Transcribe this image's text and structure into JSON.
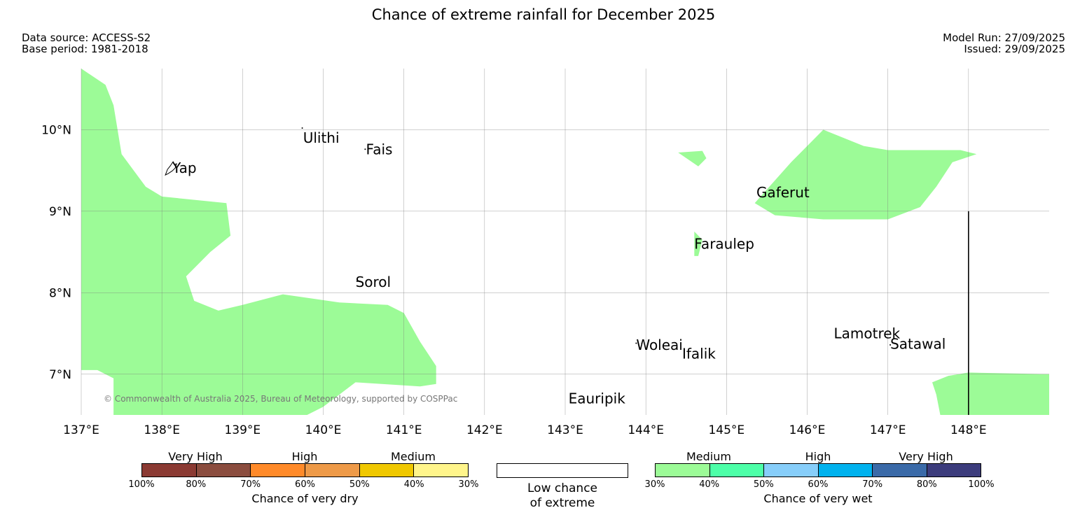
{
  "title": "Chance of extreme rainfall for December 2025",
  "meta": {
    "data_source": "Data source: ACCESS-S2",
    "base_period": "Base period: 1981-2018",
    "model_run": "Model Run: 27/09/2025",
    "issued": "Issued: 29/09/2025"
  },
  "map": {
    "lon_range": [
      137,
      149
    ],
    "lat_range": [
      6.5,
      10.75
    ],
    "lon_ticks": [
      137,
      138,
      139,
      140,
      141,
      142,
      143,
      144,
      145,
      146,
      147,
      148
    ],
    "lon_labels": [
      "137°E",
      "138°E",
      "139°E",
      "140°E",
      "141°E",
      "142°E",
      "143°E",
      "144°E",
      "145°E",
      "146°E",
      "147°E",
      "148°E"
    ],
    "lat_ticks": [
      7,
      8,
      9,
      10
    ],
    "lat_labels": [
      "7°N",
      "8°N",
      "9°N",
      "10°N"
    ],
    "copyright": "© Commonwealth of Australia 2025, Bureau of Meteorology, supported by COSPPac",
    "fill_color": "#9cfb97",
    "places": [
      {
        "name": "Ulithi",
        "lon": 139.75,
        "lat": 9.9
      },
      {
        "name": "Fais",
        "lon": 140.53,
        "lat": 9.76
      },
      {
        "name": "Yap",
        "lon": 138.13,
        "lat": 9.53
      },
      {
        "name": "Gaferut",
        "lon": 145.37,
        "lat": 9.23
      },
      {
        "name": "Faraulep",
        "lon": 144.6,
        "lat": 8.6
      },
      {
        "name": "Sorol",
        "lon": 140.4,
        "lat": 8.13
      },
      {
        "name": "Woleai",
        "lon": 143.88,
        "lat": 7.36
      },
      {
        "name": "Ifalik",
        "lon": 144.45,
        "lat": 7.25
      },
      {
        "name": "Lamotrek",
        "lon": 146.33,
        "lat": 7.5
      },
      {
        "name": "Satawal",
        "lon": 147.03,
        "lat": 7.37
      },
      {
        "name": "Eauripik",
        "lon": 143.04,
        "lat": 6.7
      }
    ],
    "wet_regions": [
      {
        "name": "wet-region-west",
        "lonlat": [
          [
            137,
            10.75
          ],
          [
            137.3,
            10.55
          ],
          [
            137.4,
            10.3
          ],
          [
            137.5,
            9.7
          ],
          [
            137.8,
            9.3
          ],
          [
            138,
            9.18
          ],
          [
            138.8,
            9.1
          ],
          [
            138.85,
            8.7
          ],
          [
            138.6,
            8.5
          ],
          [
            138.3,
            8.2
          ],
          [
            138.4,
            7.9
          ],
          [
            138.7,
            7.78
          ],
          [
            139,
            7.85
          ],
          [
            139.5,
            7.98
          ],
          [
            140.2,
            7.88
          ],
          [
            140.8,
            7.85
          ],
          [
            141,
            7.75
          ],
          [
            141.2,
            7.4
          ],
          [
            141.4,
            7.1
          ],
          [
            141.4,
            6.88
          ],
          [
            141.2,
            6.85
          ],
          [
            140.4,
            6.9
          ],
          [
            140,
            6.6
          ],
          [
            139.8,
            6.5
          ],
          [
            137.4,
            6.5
          ],
          [
            137.4,
            6.95
          ],
          [
            137.2,
            7.05
          ],
          [
            137,
            7.05
          ]
        ]
      },
      {
        "name": "wet-region-small-1",
        "lonlat": [
          [
            144.4,
            9.72
          ],
          [
            144.7,
            9.74
          ],
          [
            144.75,
            9.65
          ],
          [
            144.65,
            9.55
          ]
        ]
      },
      {
        "name": "wet-region-small-2",
        "lonlat": [
          [
            144.6,
            8.75
          ],
          [
            144.7,
            8.65
          ],
          [
            144.65,
            8.45
          ],
          [
            144.6,
            8.45
          ]
        ]
      },
      {
        "name": "wet-region-northeast",
        "lonlat": [
          [
            145.35,
            9.1
          ],
          [
            145.8,
            9.6
          ],
          [
            146.2,
            10.0
          ],
          [
            146.7,
            9.8
          ],
          [
            147.0,
            9.75
          ],
          [
            147.9,
            9.75
          ],
          [
            148.1,
            9.7
          ],
          [
            147.8,
            9.6
          ],
          [
            147.6,
            9.3
          ],
          [
            147.4,
            9.05
          ],
          [
            147,
            8.9
          ],
          [
            146.2,
            8.9
          ],
          [
            145.6,
            8.95
          ]
        ]
      },
      {
        "name": "wet-region-southeast",
        "lonlat": [
          [
            147.55,
            6.9
          ],
          [
            147.6,
            6.75
          ],
          [
            147.65,
            6.5
          ],
          [
            149,
            6.5
          ],
          [
            149,
            7.0
          ],
          [
            148,
            7.02
          ],
          [
            147.75,
            6.98
          ]
        ]
      }
    ],
    "black_line": {
      "lon": 148,
      "lat_from": 6.5,
      "lat_to": 9.0
    }
  },
  "legend": {
    "dry": {
      "label": "Chance of very dry",
      "categories": [
        "Very High",
        "High",
        "Medium"
      ],
      "colors": [
        "#8b3a33",
        "#8b4d3f",
        "#ff8a29",
        "#ee9a48",
        "#f0c800",
        "#fff58b"
      ],
      "ticks": [
        "100%",
        "80%",
        "70%",
        "60%",
        "50%",
        "40%",
        "30%"
      ]
    },
    "low": {
      "label_line1": "Low chance",
      "label_line2": "of extreme"
    },
    "wet": {
      "label": "Chance of very wet",
      "categories": [
        "Medium",
        "High",
        "Very High"
      ],
      "colors": [
        "#9cfb97",
        "#4dffa8",
        "#87cefa",
        "#00b2ee",
        "#3a6aa8",
        "#3c3c7c"
      ],
      "ticks": [
        "30%",
        "40%",
        "50%",
        "60%",
        "70%",
        "80%",
        "100%"
      ]
    }
  }
}
